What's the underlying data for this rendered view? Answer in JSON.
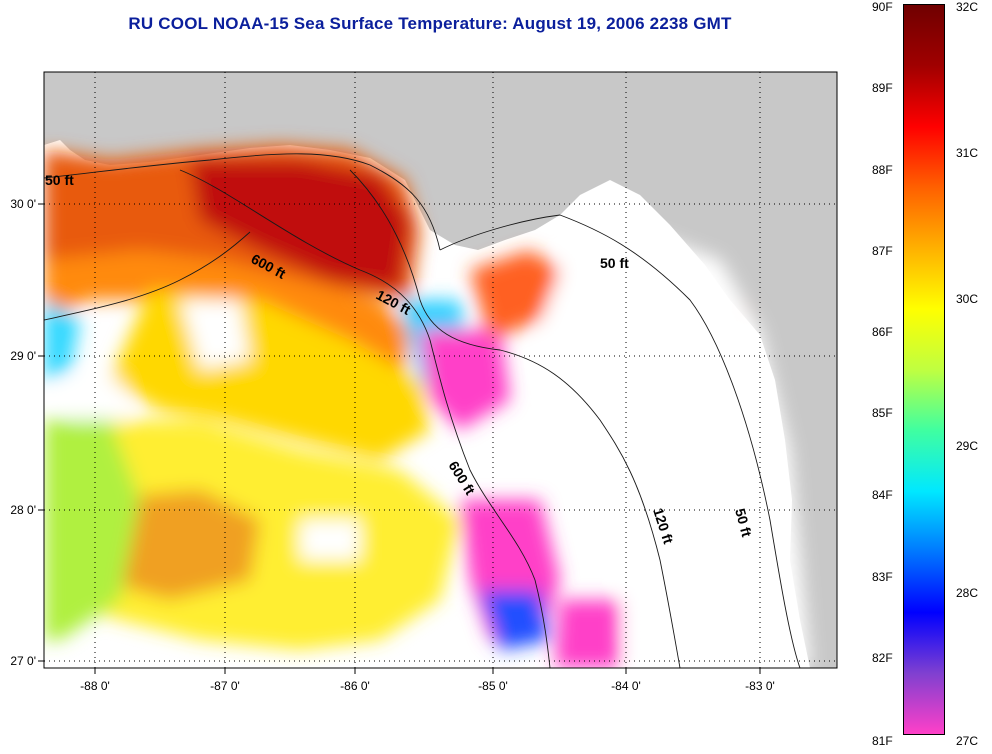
{
  "title": "RU COOL  NOAA-15  Sea Surface Temperature:  August 19, 2006 2238 GMT",
  "colors": {
    "land": "#c8c8c8",
    "nodata": "#ffffff",
    "title": "#0b1f9c",
    "scale": [
      "#ff40c8",
      "#8040d0",
      "#0000ff",
      "#0078ff",
      "#00e8ff",
      "#40ffa0",
      "#c0ff40",
      "#ffff00",
      "#ffb000",
      "#ff6000",
      "#ff0000",
      "#a00000",
      "#700000"
    ]
  },
  "axes": {
    "x_ticks": [
      "-88 0'",
      "-87 0'",
      "-86 0'",
      "-85 0'",
      "-84 0'",
      "-83 0'"
    ],
    "y_ticks": [
      "30 0'",
      "29 0'",
      "28 0'",
      "27 0'"
    ]
  },
  "contours": {
    "labels": [
      "50 ft",
      "600 ft",
      "120 ft",
      "50 ft",
      "600 ft",
      "120 ft",
      "50 ft"
    ]
  },
  "colorbar": {
    "fahrenheit": [
      "90F",
      "89F",
      "88F",
      "87F",
      "86F",
      "85F",
      "84F",
      "83F",
      "82F",
      "81F"
    ],
    "celsius": [
      "32C",
      "31C",
      "30C",
      "29C",
      "28C",
      "27C"
    ]
  }
}
